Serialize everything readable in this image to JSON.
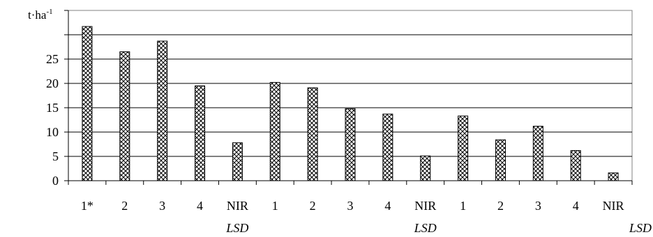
{
  "chart_data": {
    "type": "bar",
    "ylabel": "t·ha",
    "ylabel_superscript": "-1",
    "ylim": [
      0,
      35
    ],
    "yticks": [
      0,
      5,
      10,
      15,
      20,
      25,
      30
    ],
    "ytick_labels": [
      "0",
      "5",
      "10",
      "15",
      "20",
      "25",
      ""
    ],
    "grid": true,
    "legend": "none",
    "pattern": "crosshatch",
    "categories": [
      "1*",
      "2",
      "3",
      "4",
      "NIR",
      "1",
      "2",
      "3",
      "4",
      "NIR",
      "1",
      "2",
      "3",
      "4",
      "NIR"
    ],
    "sublabels": [
      "",
      "",
      "",
      "",
      "LSD",
      "",
      "",
      "",
      "",
      "LSD",
      "",
      "",
      "",
      "",
      "LSD"
    ],
    "values": [
      31.7,
      26.5,
      28.7,
      19.5,
      7.8,
      20.2,
      19.1,
      14.8,
      13.7,
      5.1,
      13.3,
      8.4,
      11.2,
      6.2,
      1.6
    ]
  }
}
